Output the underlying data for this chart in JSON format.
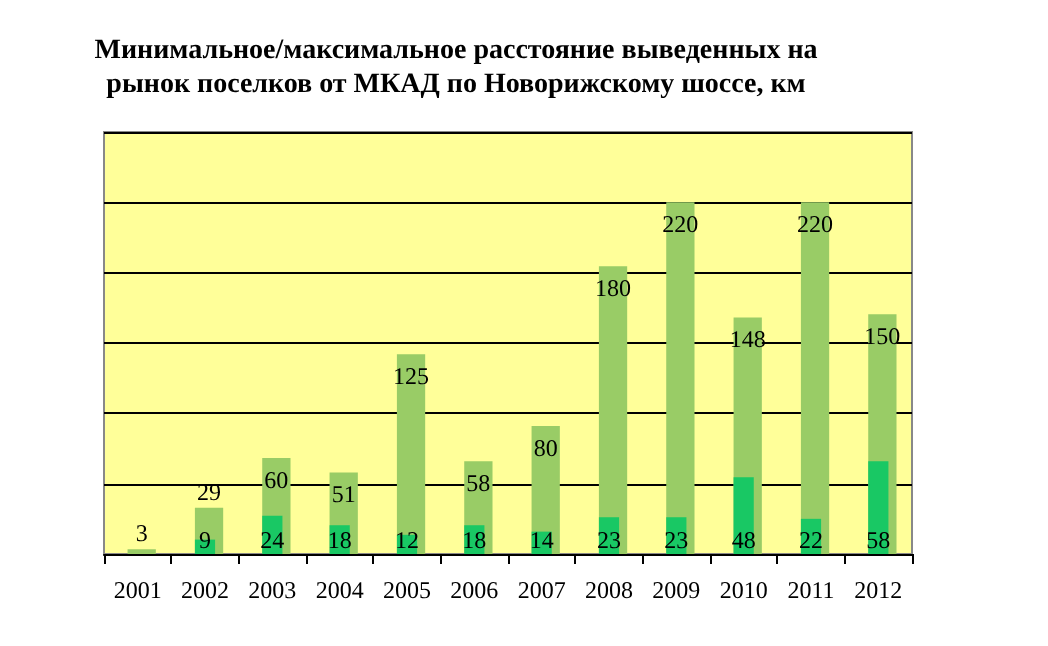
{
  "chart_data": {
    "type": "bar",
    "title": "Минимальное/максимальное расстояние выведенных на\nрынок поселков от МКАД по Новорижскому шоссе, км",
    "categories": [
      "2001",
      "2002",
      "2003",
      "2004",
      "2005",
      "2006",
      "2007",
      "2008",
      "2009",
      "2010",
      "2011",
      "2012"
    ],
    "series": [
      {
        "color": "#99cc66",
        "values": [
          3,
          29,
          60,
          51,
          125,
          58,
          80,
          180,
          220,
          148,
          220,
          150
        ]
      },
      {
        "color": "#19c864",
        "values": [
          null,
          9,
          24,
          18,
          12,
          18,
          14,
          23,
          23,
          48,
          22,
          58
        ]
      }
    ],
    "ylim": [
      0,
      264
    ],
    "yticks": [
      {
        "value": 0,
        "label": null
      },
      {
        "value": 44,
        "label": null
      },
      {
        "value": 88,
        "label": null
      },
      {
        "value": 132,
        "label": null
      },
      {
        "value": 176,
        "label": null
      },
      {
        "value": 220,
        "label": null
      },
      {
        "value": 264,
        "label": null
      }
    ],
    "grid": "y",
    "data_labels": true,
    "tick_labels": "x"
  }
}
